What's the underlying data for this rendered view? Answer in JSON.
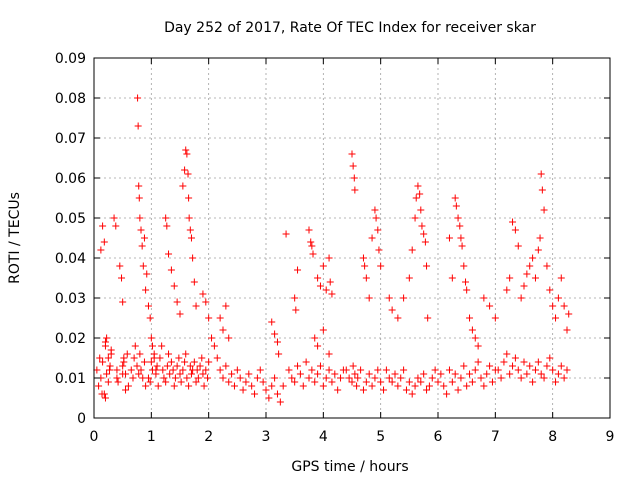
{
  "chart_data": {
    "type": "scatter",
    "title": "Day 252 of 2017, Rate Of TEC Index for receiver skar",
    "xlabel": "GPS time / hours",
    "ylabel": "ROTI / TECUs",
    "xlim": [
      0,
      9
    ],
    "ylim": [
      0,
      0.09
    ],
    "x_ticks": [
      "0",
      "1",
      "2",
      "3",
      "4",
      "5",
      "6",
      "7",
      "8",
      "9"
    ],
    "y_ticks": [
      "0",
      "0.01",
      "0.02",
      "0.03",
      "0.04",
      "0.05",
      "0.06",
      "0.07",
      "0.08",
      "0.09"
    ],
    "grid": true,
    "marker": "+",
    "marker_color": "#ff0000",
    "series": [
      {
        "x": [
          0.05,
          0.08,
          0.1,
          0.12,
          0.15,
          0.18,
          0.2,
          0.22,
          0.25,
          0.28,
          0.3,
          0.12,
          0.15,
          0.18,
          0.2,
          0.22,
          0.25,
          0.27,
          0.3,
          0.14,
          0.2,
          0.35,
          0.38,
          0.4,
          0.42,
          0.45,
          0.48,
          0.5,
          0.52,
          0.55,
          0.58,
          0.6,
          0.4,
          0.5,
          0.55,
          0.52,
          0.5,
          0.65,
          0.68,
          0.7,
          0.72,
          0.75,
          0.78,
          0.8,
          0.82,
          0.85,
          0.88,
          0.9,
          0.76,
          0.77,
          0.78,
          0.79,
          0.8,
          0.82,
          0.84,
          0.86,
          0.88,
          0.9,
          0.92,
          0.95,
          0.98,
          1.0,
          1.02,
          1.05,
          1.08,
          0.95,
          0.98,
          1.0,
          1.02,
          1.05,
          1.08,
          1.1,
          1.12,
          1.15,
          1.18,
          1.2,
          1.22,
          1.25,
          1.28,
          1.3,
          1.32,
          1.35,
          1.38,
          1.4,
          1.42,
          1.45,
          1.48,
          1.5,
          1.52,
          1.55,
          1.58,
          1.6,
          1.62,
          1.65,
          1.68,
          1.7,
          1.72,
          1.75,
          1.78,
          1.8,
          1.82,
          1.85,
          1.88,
          1.9,
          1.92,
          1.95,
          1.98,
          2.0,
          1.25,
          1.27,
          1.3,
          1.35,
          1.4,
          1.45,
          1.5,
          1.55,
          1.58,
          1.6,
          1.62,
          1.64,
          1.65,
          1.66,
          1.68,
          1.7,
          1.72,
          1.75,
          1.78,
          1.9,
          1.95,
          2.0,
          2.05,
          2.1,
          2.15,
          2.2,
          2.25,
          2.3,
          2.35,
          2.4,
          2.45,
          2.5,
          2.55,
          2.6,
          2.65,
          2.7,
          2.75,
          2.8,
          2.85,
          2.9,
          2.95,
          3.0,
          3.05,
          3.1,
          3.15,
          3.2,
          3.25,
          3.3,
          2.2,
          2.25,
          2.3,
          2.35,
          3.1,
          3.15,
          3.2,
          3.22,
          3.35,
          3.4,
          3.45,
          3.5,
          3.55,
          3.6,
          3.65,
          3.7,
          3.75,
          3.8,
          3.85,
          3.9,
          3.95,
          4.0,
          4.05,
          4.1,
          4.15,
          4.2,
          4.25,
          4.3,
          4.35,
          3.5,
          3.52,
          3.55,
          3.75,
          3.78,
          3.8,
          3.82,
          3.9,
          3.95,
          4.0,
          4.05,
          4.1,
          4.12,
          4.15,
          3.85,
          3.9,
          4.0,
          4.1,
          4.4,
          4.45,
          4.5,
          4.52,
          4.55,
          4.58,
          4.6,
          4.65,
          4.7,
          4.75,
          4.8,
          4.85,
          4.9,
          4.95,
          5.0,
          5.05,
          4.5,
          4.52,
          4.54,
          4.55,
          4.7,
          4.72,
          4.75,
          4.8,
          4.85,
          4.9,
          4.92,
          4.95,
          4.97,
          5.0,
          5.1,
          5.15,
          5.2,
          5.25,
          5.3,
          5.35,
          5.4,
          5.45,
          5.5,
          5.55,
          5.6,
          5.65,
          5.7,
          5.75,
          5.8,
          5.85,
          5.9,
          5.95,
          6.0,
          6.05,
          5.15,
          5.2,
          5.3,
          5.4,
          5.5,
          5.55,
          5.6,
          5.62,
          5.65,
          5.68,
          5.7,
          5.72,
          5.75,
          5.78,
          5.8,
          5.82,
          6.1,
          6.15,
          6.2,
          6.25,
          6.3,
          6.35,
          6.4,
          6.45,
          6.5,
          6.55,
          6.6,
          6.65,
          6.7,
          6.75,
          6.8,
          6.85,
          6.9,
          6.95,
          7.0,
          6.2,
          6.25,
          6.3,
          6.32,
          6.35,
          6.38,
          6.4,
          6.42,
          6.45,
          6.48,
          6.5,
          6.55,
          6.6,
          6.65,
          6.7,
          6.8,
          6.9,
          7.0,
          7.05,
          7.1,
          7.15,
          7.2,
          7.25,
          7.3,
          7.35,
          7.4,
          7.45,
          7.5,
          7.55,
          7.6,
          7.65,
          7.7,
          7.75,
          7.8,
          7.85,
          7.9,
          7.95,
          8.0,
          8.05,
          8.1,
          8.15,
          8.2,
          8.25,
          7.2,
          7.25,
          7.3,
          7.35,
          7.4,
          7.45,
          7.5,
          7.55,
          7.6,
          7.65,
          7.7,
          7.75,
          7.78,
          7.8,
          7.82,
          7.85,
          7.9,
          7.95,
          8.0,
          8.05,
          8.1,
          8.15,
          8.2,
          8.25,
          8.28
        ],
        "y": [
          0.012,
          0.008,
          0.015,
          0.01,
          0.014,
          0.006,
          0.018,
          0.011,
          0.009,
          0.013,
          0.016,
          0.042,
          0.048,
          0.044,
          0.019,
          0.02,
          0.015,
          0.012,
          0.017,
          0.006,
          0.005,
          0.05,
          0.048,
          0.012,
          0.009,
          0.038,
          0.035,
          0.029,
          0.014,
          0.011,
          0.016,
          0.008,
          0.01,
          0.013,
          0.007,
          0.015,
          0.011,
          0.012,
          0.01,
          0.015,
          0.018,
          0.013,
          0.011,
          0.016,
          0.012,
          0.01,
          0.014,
          0.008,
          0.08,
          0.073,
          0.058,
          0.055,
          0.05,
          0.047,
          0.043,
          0.038,
          0.045,
          0.032,
          0.036,
          0.028,
          0.025,
          0.02,
          0.018,
          0.015,
          0.012,
          0.01,
          0.009,
          0.014,
          0.012,
          0.016,
          0.011,
          0.013,
          0.008,
          0.015,
          0.018,
          0.012,
          0.01,
          0.009,
          0.013,
          0.016,
          0.011,
          0.014,
          0.012,
          0.008,
          0.01,
          0.013,
          0.015,
          0.011,
          0.009,
          0.012,
          0.014,
          0.016,
          0.01,
          0.008,
          0.013,
          0.011,
          0.012,
          0.014,
          0.009,
          0.012,
          0.01,
          0.013,
          0.015,
          0.011,
          0.008,
          0.012,
          0.01,
          0.014,
          0.05,
          0.048,
          0.041,
          0.037,
          0.033,
          0.029,
          0.026,
          0.058,
          0.062,
          0.067,
          0.066,
          0.061,
          0.055,
          0.05,
          0.047,
          0.045,
          0.04,
          0.034,
          0.028,
          0.031,
          0.029,
          0.025,
          0.02,
          0.018,
          0.015,
          0.012,
          0.01,
          0.013,
          0.009,
          0.011,
          0.008,
          0.012,
          0.01,
          0.007,
          0.009,
          0.011,
          0.008,
          0.006,
          0.01,
          0.012,
          0.009,
          0.007,
          0.005,
          0.008,
          0.01,
          0.006,
          0.004,
          0.008,
          0.025,
          0.022,
          0.028,
          0.02,
          0.024,
          0.021,
          0.019,
          0.016,
          0.046,
          0.012,
          0.01,
          0.009,
          0.013,
          0.011,
          0.008,
          0.014,
          0.01,
          0.012,
          0.009,
          0.011,
          0.013,
          0.008,
          0.01,
          0.012,
          0.009,
          0.011,
          0.007,
          0.01,
          0.012,
          0.03,
          0.027,
          0.037,
          0.047,
          0.044,
          0.043,
          0.041,
          0.035,
          0.033,
          0.038,
          0.032,
          0.04,
          0.034,
          0.031,
          0.02,
          0.018,
          0.022,
          0.016,
          0.012,
          0.01,
          0.009,
          0.013,
          0.011,
          0.008,
          0.01,
          0.012,
          0.007,
          0.009,
          0.011,
          0.008,
          0.01,
          0.012,
          0.009,
          0.007,
          0.066,
          0.063,
          0.06,
          0.057,
          0.04,
          0.038,
          0.035,
          0.03,
          0.045,
          0.052,
          0.05,
          0.047,
          0.042,
          0.038,
          0.012,
          0.01,
          0.009,
          0.011,
          0.008,
          0.01,
          0.012,
          0.007,
          0.009,
          0.006,
          0.008,
          0.01,
          0.009,
          0.011,
          0.007,
          0.008,
          0.01,
          0.012,
          0.009,
          0.011,
          0.03,
          0.027,
          0.025,
          0.03,
          0.035,
          0.042,
          0.05,
          0.055,
          0.058,
          0.056,
          0.052,
          0.048,
          0.046,
          0.044,
          0.038,
          0.025,
          0.008,
          0.006,
          0.012,
          0.009,
          0.011,
          0.007,
          0.01,
          0.013,
          0.008,
          0.011,
          0.009,
          0.012,
          0.014,
          0.01,
          0.008,
          0.011,
          0.013,
          0.009,
          0.012,
          0.045,
          0.035,
          0.055,
          0.053,
          0.05,
          0.048,
          0.045,
          0.043,
          0.038,
          0.034,
          0.032,
          0.025,
          0.022,
          0.02,
          0.018,
          0.03,
          0.028,
          0.025,
          0.012,
          0.01,
          0.014,
          0.016,
          0.011,
          0.013,
          0.015,
          0.012,
          0.01,
          0.014,
          0.011,
          0.013,
          0.009,
          0.012,
          0.014,
          0.011,
          0.01,
          0.013,
          0.015,
          0.012,
          0.009,
          0.011,
          0.013,
          0.01,
          0.012,
          0.032,
          0.035,
          0.049,
          0.047,
          0.043,
          0.03,
          0.033,
          0.036,
          0.038,
          0.04,
          0.035,
          0.042,
          0.045,
          0.061,
          0.057,
          0.052,
          0.038,
          0.032,
          0.028,
          0.025,
          0.03,
          0.035,
          0.028,
          0.022,
          0.026
        ]
      }
    ]
  }
}
